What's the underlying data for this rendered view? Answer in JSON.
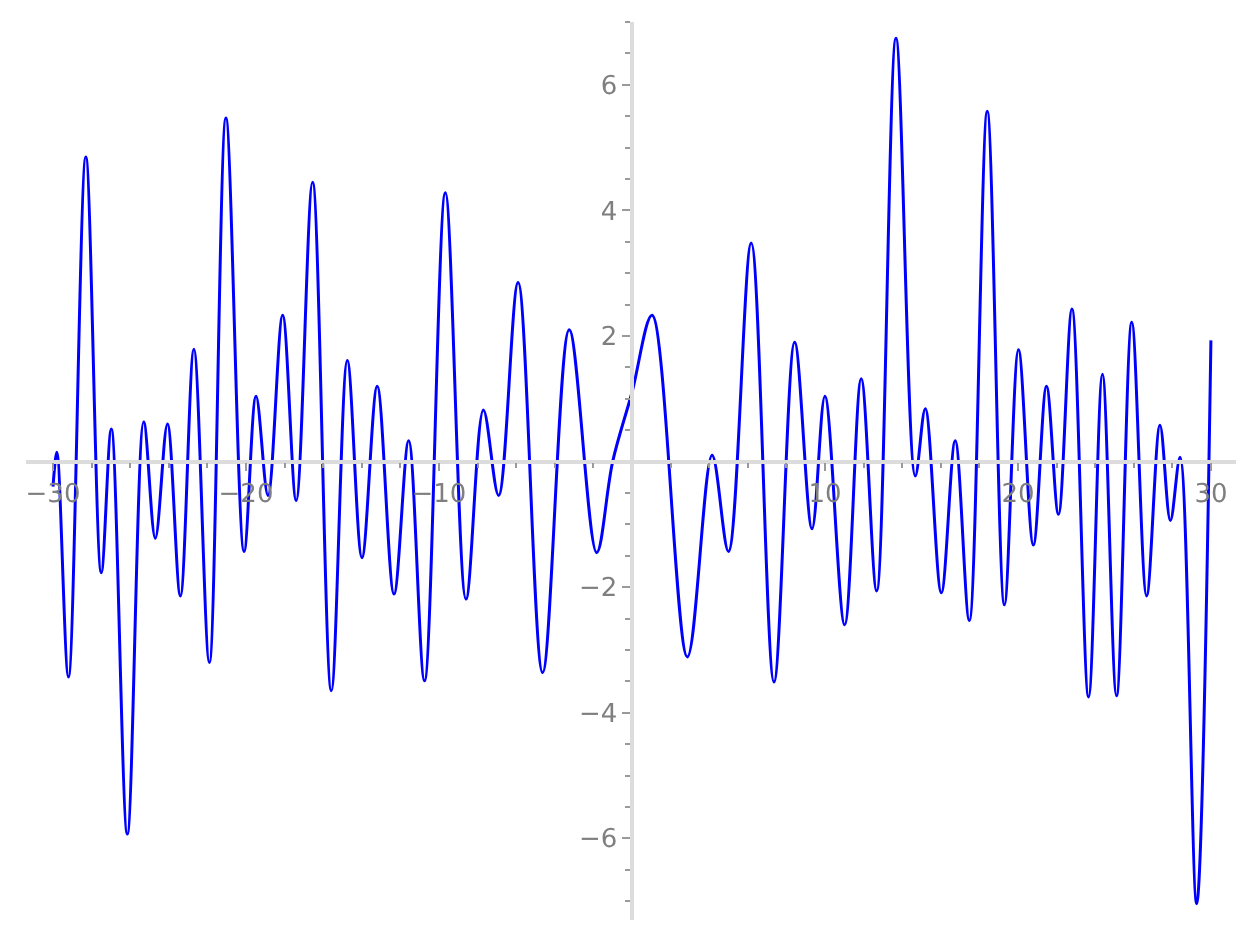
{
  "chart_data": {
    "type": "line",
    "x": [
      -30,
      -29.8,
      -29.2,
      -28.3,
      -27.5,
      -26.98,
      -26.15,
      -25.3,
      -24.7,
      -24.07,
      -23.4,
      -22.7,
      -21.9,
      -21.04,
      -20.1,
      -19.48,
      -18.86,
      -18.1,
      -17.4,
      -16.55,
      -15.58,
      -14.75,
      -13.99,
      -13.2,
      -12.33,
      -11.57,
      -10.75,
      -9.67,
      -8.6,
      -7.7,
      -6.91,
      -5.9,
      -4.63,
      -3.25,
      -1.83,
      -1.0,
      0,
      1.04,
      2.87,
      4.15,
      5.0,
      6.18,
      7.36,
      8.43,
      9.33,
      10.0,
      11.02,
      11.88,
      12.68,
      13.68,
      14.68,
      15.2,
      16.03,
      16.75,
      17.48,
      18.41,
      19.3,
      20.03,
      20.8,
      21.48,
      22.1,
      22.8,
      23.66,
      24.38,
      25.11,
      25.9,
      26.67,
      27.36,
      27.9,
      28.4,
      29.26,
      30
    ],
    "series": [
      {
        "color": "#0000ff",
        "values": [
          -0.4,
          0.15,
          -3.43,
          4.85,
          -1.77,
          0.52,
          -5.93,
          0.63,
          -1.22,
          0.6,
          -2.14,
          1.79,
          -3.2,
          5.47,
          -1.43,
          1.04,
          -0.54,
          2.33,
          -0.62,
          4.45,
          -3.65,
          1.61,
          -1.53,
          1.2,
          -2.11,
          0.33,
          -3.49,
          4.28,
          -2.19,
          0.82,
          -0.54,
          2.85,
          -3.36,
          2.1,
          -1.45,
          0.0,
          1.1,
          2.33,
          -3.11,
          0.1,
          -1.43,
          3.48,
          -3.51,
          1.9,
          -1.07,
          1.04,
          -2.6,
          1.32,
          -2.06,
          6.74,
          -0.23,
          0.84,
          -2.09,
          0.33,
          -2.53,
          5.58,
          -2.28,
          1.78,
          -1.33,
          1.2,
          -0.84,
          2.43,
          -3.75,
          1.39,
          -3.73,
          2.22,
          -2.14,
          0.58,
          -0.94,
          0.07,
          -7.04,
          1.93
        ]
      }
    ],
    "xlim": [
      -31.4,
      31.3
    ],
    "ylim": [
      -7.3,
      7.0
    ],
    "xticks": [
      -30,
      {
        "value": -28,
        "label": null
      },
      {
        "value": -26,
        "label": null
      },
      {
        "value": -24,
        "label": null
      },
      {
        "value": -22,
        "label": null
      },
      -20,
      {
        "value": -18,
        "label": null
      },
      {
        "value": -16,
        "label": null
      },
      {
        "value": -14,
        "label": null
      },
      {
        "value": -12,
        "label": null
      },
      -10,
      {
        "value": -8,
        "label": null
      },
      {
        "value": -6,
        "label": null
      },
      {
        "value": -4,
        "label": null
      },
      {
        "value": -2,
        "label": null
      },
      {
        "value": 2,
        "label": null
      },
      {
        "value": 4,
        "label": null
      },
      {
        "value": 6,
        "label": null
      },
      {
        "value": 8,
        "label": null
      },
      10,
      {
        "value": 12,
        "label": null
      },
      {
        "value": 14,
        "label": null
      },
      {
        "value": 16,
        "label": null
      },
      {
        "value": 18,
        "label": null
      },
      20,
      {
        "value": 22,
        "label": null
      },
      {
        "value": 24,
        "label": null
      },
      {
        "value": 26,
        "label": null
      },
      {
        "value": 28,
        "label": null
      },
      30
    ],
    "yticks": [
      {
        "value": -7,
        "label": null
      },
      {
        "value": -6.5,
        "label": null
      },
      -6,
      {
        "value": -5.5,
        "label": null
      },
      {
        "value": -5,
        "label": null
      },
      {
        "value": -4.5,
        "label": null
      },
      -4,
      {
        "value": -3.5,
        "label": null
      },
      {
        "value": -3,
        "label": null
      },
      {
        "value": -2.5,
        "label": null
      },
      -2,
      {
        "value": -1.5,
        "label": null
      },
      {
        "value": -1,
        "label": null
      },
      {
        "value": -0.5,
        "label": null
      },
      {
        "value": 0.5,
        "label": null
      },
      {
        "value": 1,
        "label": null
      },
      {
        "value": 1.5,
        "label": null
      },
      2,
      {
        "value": 2.5,
        "label": null
      },
      {
        "value": 3,
        "label": null
      },
      {
        "value": 3.5,
        "label": null
      },
      4,
      {
        "value": 4.5,
        "label": null
      },
      {
        "value": 5,
        "label": null
      },
      {
        "value": 5.5,
        "label": null
      },
      6,
      {
        "value": 6.5,
        "label": null
      },
      {
        "value": 7,
        "label": null
      }
    ],
    "line_style": "solid"
  }
}
